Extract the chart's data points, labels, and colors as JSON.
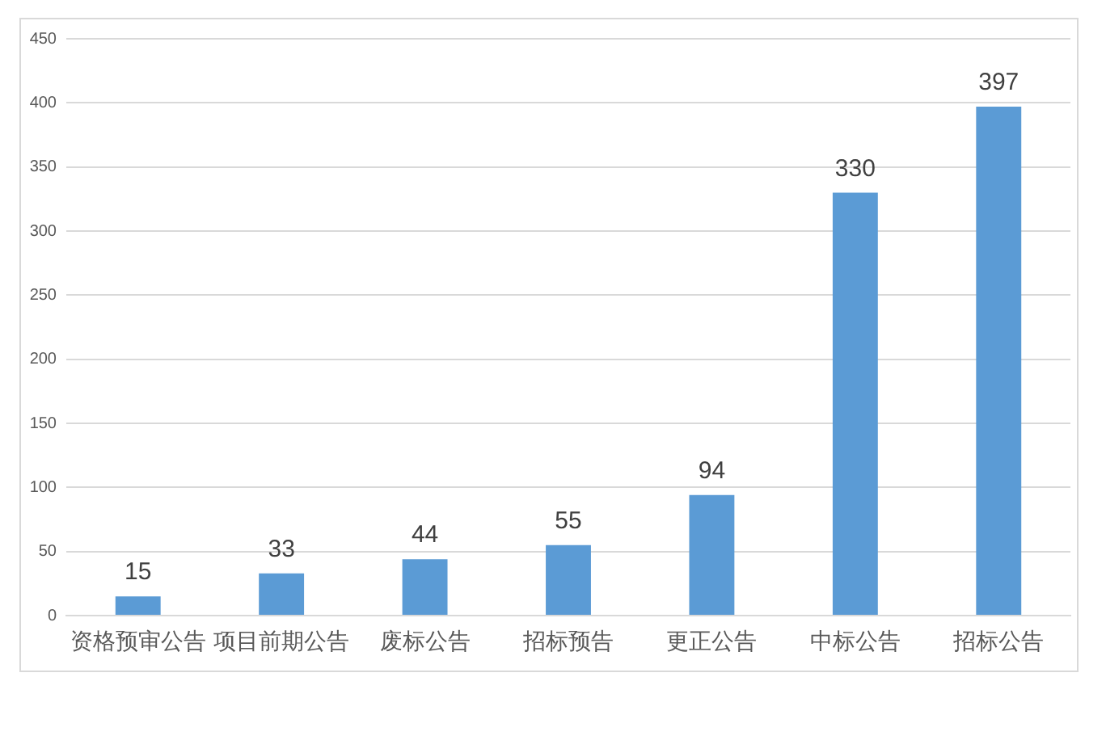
{
  "chart_data": {
    "type": "bar",
    "categories": [
      "资格预审公告",
      "项目前期公告",
      "废标公告",
      "招标预告",
      "更正公告",
      "中标公告",
      "招标公告"
    ],
    "values": [
      15,
      33,
      44,
      55,
      94,
      330,
      397
    ],
    "color": "#5b9bd5",
    "ylim": [
      0,
      450
    ],
    "yticks": [
      0,
      50,
      100,
      150,
      200,
      250,
      300,
      350,
      400,
      450
    ],
    "grid": "y",
    "data_labels": true
  }
}
